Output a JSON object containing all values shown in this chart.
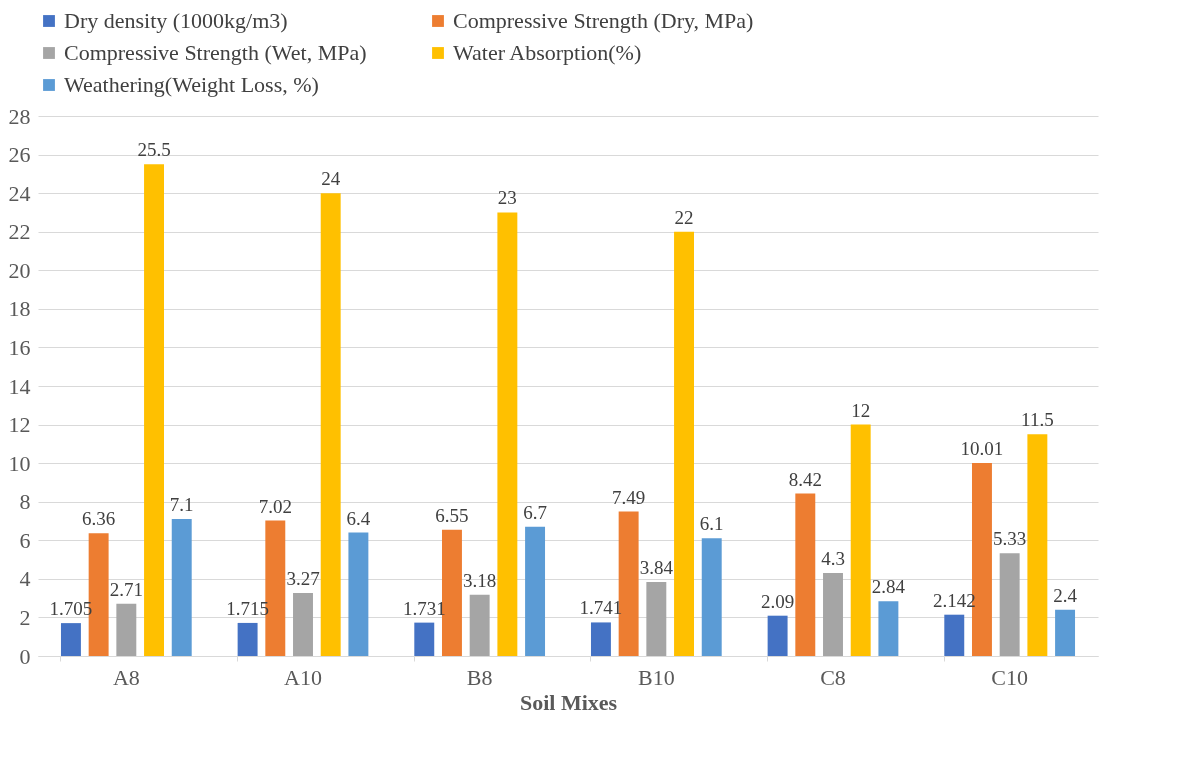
{
  "chart_data": {
    "type": "bar",
    "xlabel": "Soil Mixes",
    "categories": [
      "A8",
      "A10",
      "B8",
      "B10",
      "C8",
      "C10"
    ],
    "series": [
      {
        "name": "Dry density (1000kg/m3)",
        "color": "#4472c4",
        "values": [
          1.705,
          1.715,
          1.731,
          1.741,
          2.09,
          2.142
        ]
      },
      {
        "name": "Compressive Strength (Dry, MPa)",
        "color": "#ed7d31",
        "values": [
          6.36,
          7.02,
          6.55,
          7.49,
          8.42,
          10.01
        ]
      },
      {
        "name": "Compressive Strength (Wet, MPa)",
        "color": "#a5a5a5",
        "values": [
          2.71,
          3.27,
          3.18,
          3.84,
          4.3,
          5.33
        ]
      },
      {
        "name": "Water Absorption(%)",
        "color": "#ffc000",
        "values": [
          25.5,
          24,
          23,
          22,
          12,
          11.5
        ]
      },
      {
        "name": "Weathering(Weight Loss, %)",
        "color": "#5b9bd5",
        "values": [
          7.1,
          6.4,
          6.7,
          6.1,
          2.84,
          2.4
        ]
      }
    ],
    "ylim": [
      0,
      28
    ],
    "yticks": [
      0,
      2,
      4,
      6,
      8,
      10,
      12,
      14,
      16,
      18,
      20,
      22,
      24,
      26,
      28
    ],
    "grid": "y",
    "legend": "top",
    "data_labels": true
  }
}
